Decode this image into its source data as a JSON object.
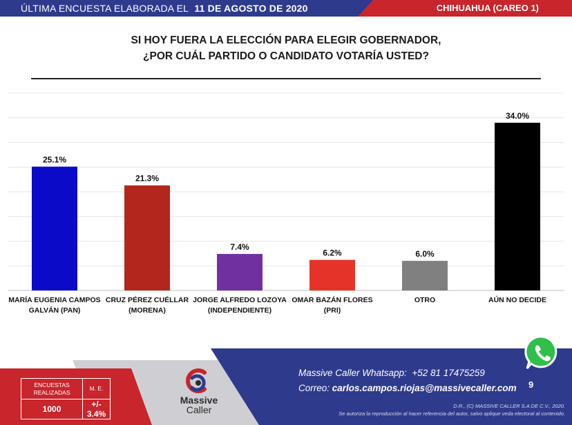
{
  "header": {
    "left_text": "ÚLTIMA ENCUESTA ELABORADA EL",
    "date": "11 DE AGOSTO DE 2020",
    "region": "CHIHUAHUA (CAREO 1)",
    "colors": {
      "blue": "#2e3a8c",
      "red": "#c8252c"
    }
  },
  "question": {
    "line1": "SI HOY FUERA LA ELECCIÓN PARA ELEGIR GOBERNADOR,",
    "line2": "¿POR CUÁL PARTIDO O CANDIDATO VOTARÍA USTED?"
  },
  "chart_data": {
    "type": "bar",
    "categories": [
      [
        "MARÍA EUGENIA CAMPOS",
        "GALVÁN (PAN)"
      ],
      [
        "CRUZ PÉREZ CUÉLLAR",
        "(MORENA)"
      ],
      [
        "JORGE ALFREDO LOZOYA",
        "(INDEPENDIENTE)"
      ],
      [
        "OMAR BAZÁN FLORES",
        "(PRI)"
      ],
      [
        "OTRO"
      ],
      [
        "AÚN NO DECIDE"
      ]
    ],
    "values": [
      25.1,
      21.3,
      7.4,
      6.2,
      6.0,
      34.0
    ],
    "data_labels": [
      "25.1%",
      "21.3%",
      "7.4%",
      "6.2%",
      "6.0%",
      "34.0%"
    ],
    "colors": [
      "#0a0ac8",
      "#b3261e",
      "#7030a0",
      "#e6332a",
      "#808080",
      "#000000"
    ],
    "ylim": [
      0,
      40
    ],
    "grid": true,
    "legend": "none",
    "title": "",
    "xlabel": "",
    "ylabel": ""
  },
  "footer": {
    "stats": {
      "encuestas_label": "ENCUESTAS REALIZADAS",
      "me_label": "M. E.",
      "encuestas_value": "1000",
      "me_value": "+/- 3.4%"
    },
    "logo": {
      "word1": "Massive",
      "word2": "Caller"
    },
    "whatsapp_line_label": "Massive Caller Whatsapp:",
    "whatsapp_number": "+52 81 17475259",
    "email_label": "Correo:",
    "email": "carlos.campos.riojas@massivecaller.com",
    "page_number": "9",
    "legal1": "D.R., (C) MASSIVE CALLER S.A DE C.V., 2020.",
    "legal2": "Se autoriza la reproducción al hacer referencia del autor, salvo aplique veda electoral al contenido.",
    "whatsapp_icon": "whatsapp-icon"
  }
}
